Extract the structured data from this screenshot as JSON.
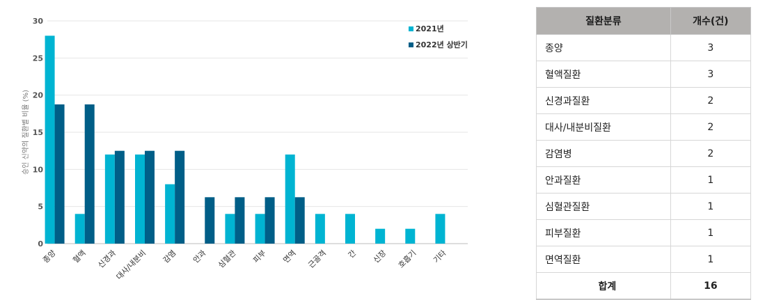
{
  "chart_data": {
    "type": "bar",
    "ylabel": "승인 신약의 질환별 비율 (%)",
    "ylim": [
      0,
      30
    ],
    "yticks": [
      0,
      5,
      10,
      15,
      20,
      25,
      30
    ],
    "categories": [
      "종양",
      "혈액",
      "신경과",
      "대사/내분비",
      "감염",
      "안과",
      "심혈관",
      "피부",
      "면역",
      "근골격",
      "간",
      "신장",
      "호흡기",
      "기타"
    ],
    "series": [
      {
        "name": "2021년",
        "color": "#00b4d2",
        "values": [
          28,
          4,
          12,
          12,
          8,
          0,
          4,
          4,
          12,
          4,
          4,
          2,
          2,
          4
        ]
      },
      {
        "name": "2022년 상반기",
        "color": "#005e87",
        "values": [
          18.75,
          18.75,
          12.5,
          12.5,
          12.5,
          6.25,
          6.25,
          6.25,
          6.25,
          0,
          0,
          0,
          0,
          0
        ]
      }
    ],
    "grid": true,
    "legend": "top-right"
  },
  "table": {
    "headers": [
      "질환분류",
      "개수(건)"
    ],
    "rows": [
      {
        "name": "종양",
        "count": "3"
      },
      {
        "name": "혈액질환",
        "count": "3"
      },
      {
        "name": "신경과질환",
        "count": "2"
      },
      {
        "name": "대사/내분비질환",
        "count": "2"
      },
      {
        "name": "감염병",
        "count": "2"
      },
      {
        "name": "안과질환",
        "count": "1"
      },
      {
        "name": "심혈관질환",
        "count": "1"
      },
      {
        "name": "피부질환",
        "count": "1"
      },
      {
        "name": "면역질환",
        "count": "1"
      }
    ],
    "total": {
      "name": "합계",
      "count": "16"
    }
  }
}
